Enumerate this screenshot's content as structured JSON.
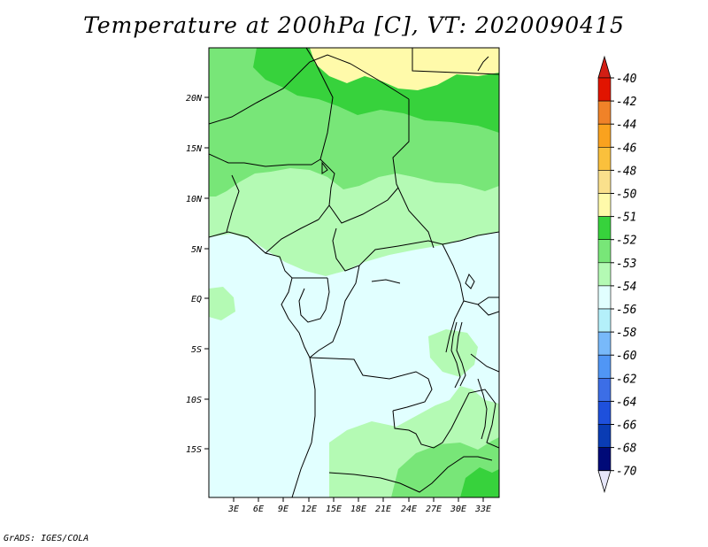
{
  "title": "Temperature at 200hPa [C], VT: 2020090415",
  "credit": "GrADS: IGES/COLA",
  "lat_labels": [
    "20N",
    "15N",
    "10N",
    "5N",
    "EQ",
    "5S",
    "10S",
    "15S"
  ],
  "lon_labels": [
    "3E",
    "6E",
    "9E",
    "12E",
    "15E",
    "18E",
    "21E",
    "24E",
    "27E",
    "30E",
    "33E"
  ],
  "legend": {
    "levels": [
      {
        "label": "-40",
        "color": "#a00000"
      },
      {
        "label": "-42",
        "color": "#e11400"
      },
      {
        "label": "-44",
        "color": "#f08228"
      },
      {
        "label": "-46",
        "color": "#faa21e"
      },
      {
        "label": "-48",
        "color": "#fac03c"
      },
      {
        "label": "-50",
        "color": "#fae08c"
      },
      {
        "label": "-51",
        "color": "#fffaaa"
      },
      {
        "label": "-52",
        "color": "#37d23c"
      },
      {
        "label": "-53",
        "color": "#78e678"
      },
      {
        "label": "-54",
        "color": "#b4fab4"
      },
      {
        "label": "-56",
        "color": "#e1ffff"
      },
      {
        "label": "-58",
        "color": "#b4f0fa"
      },
      {
        "label": "-60",
        "color": "#78b9fa"
      },
      {
        "label": "-62",
        "color": "#5096f5"
      },
      {
        "label": "-64",
        "color": "#3c6ee6"
      },
      {
        "label": "-66",
        "color": "#1e50dc"
      },
      {
        "label": "-68",
        "color": "#0a3cb4"
      },
      {
        "label": "-70",
        "color": "#000a78"
      }
    ],
    "top_arrow_color": "#d21e14",
    "bottom_arrow_color": "#e6e6fa"
  },
  "colors": {
    "c_51": "#fffaaa",
    "c_52": "#37d23c",
    "c_53": "#78e678",
    "c_54": "#b4fab4",
    "c_56": "#e1ffff"
  }
}
